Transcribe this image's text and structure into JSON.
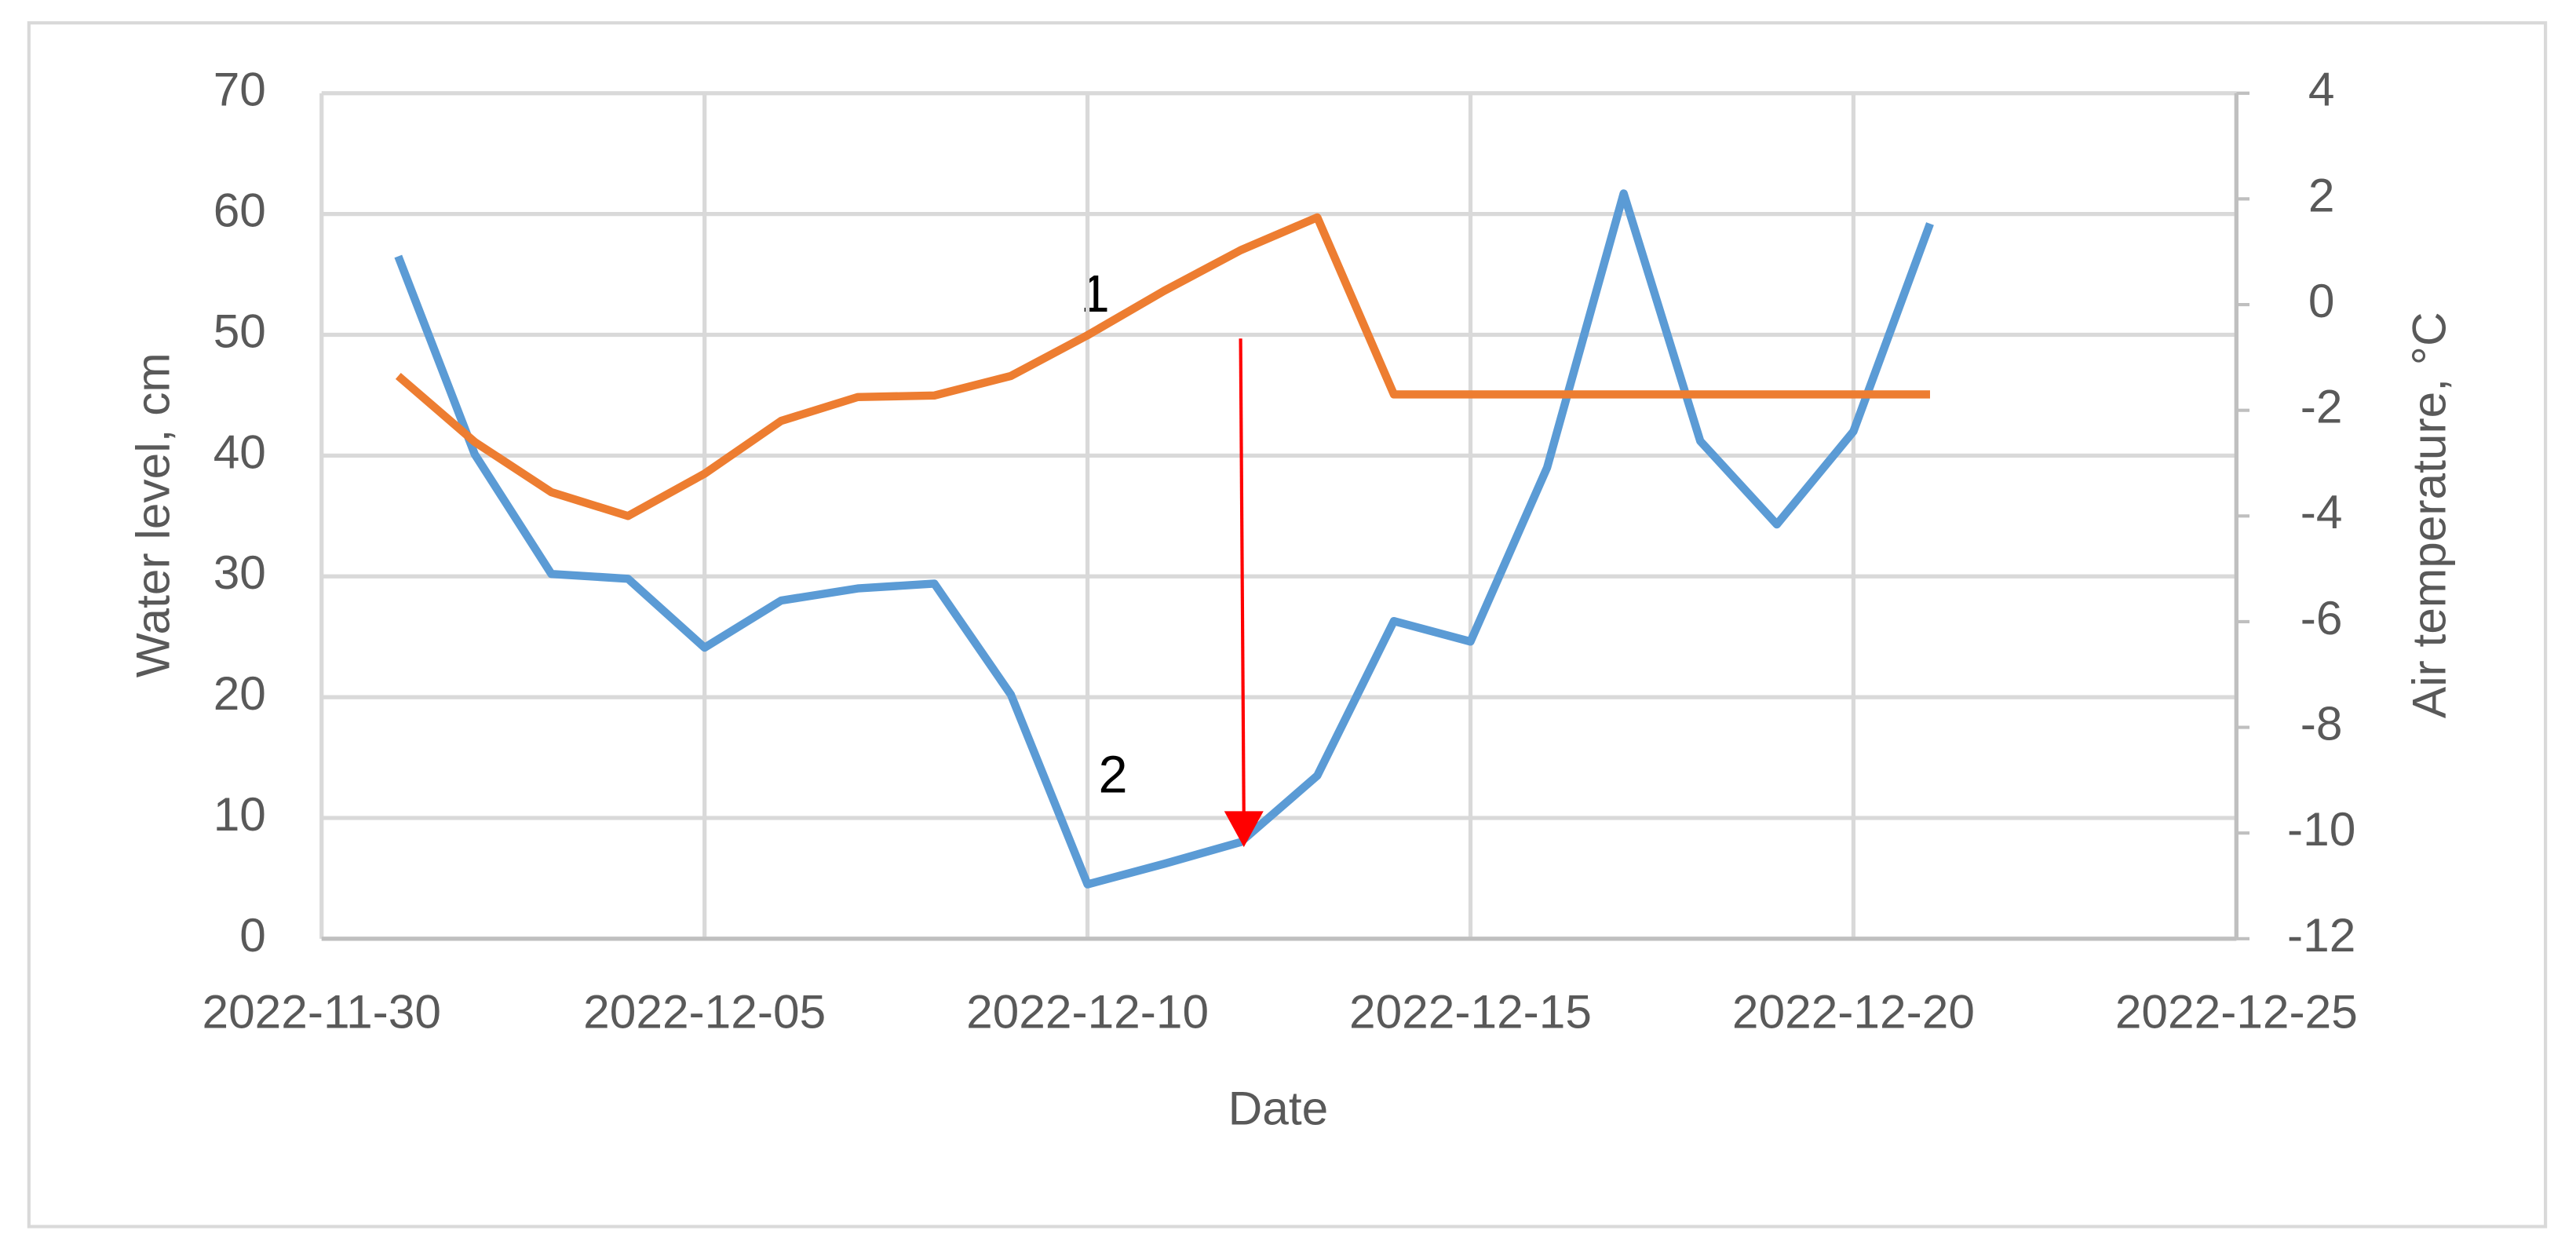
{
  "chart_data": {
    "type": "line",
    "x_label": "Date",
    "y_label": "Water level, cm",
    "y2_label": "Air temperature, °C",
    "x": [
      "2022-12-01",
      "2022-12-02",
      "2022-12-03",
      "2022-12-04",
      "2022-12-05",
      "2022-12-06",
      "2022-12-07",
      "2022-12-08",
      "2022-12-09",
      "2022-12-10",
      "2022-12-11",
      "2022-12-12",
      "2022-12-13",
      "2022-12-14",
      "2022-12-15",
      "2022-12-16",
      "2022-12-17",
      "2022-12-18",
      "2022-12-19",
      "2022-12-20",
      "2022-12-21"
    ],
    "series": [
      {
        "color": "#5b9bd5",
        "values": [
          56.5,
          40.1,
          30.2,
          29.8,
          24.1,
          28.0,
          29.0,
          29.4,
          20.2,
          4.5,
          6.2,
          8.0,
          13.5,
          26.3,
          24.6,
          39.0,
          61.7,
          41.2,
          34.3,
          42.0,
          59.2
        ]
      },
      {
        "color": "#ed7d31",
        "axis": "y2",
        "values": [
          -1.35,
          -2.6,
          -3.55,
          -4.0,
          -3.2,
          -2.2,
          -1.75,
          -1.72,
          -1.35,
          -0.58,
          0.26,
          1.03,
          1.65,
          -1.7,
          -1.7,
          -1.7,
          -1.7,
          -1.7,
          -1.7,
          -1.7,
          -1.7
        ]
      }
    ],
    "xlim": [
      "2022-11-30",
      "2022-12-25"
    ],
    "xticks": [
      "2022-11-30",
      "2022-12-05",
      "2022-12-10",
      "2022-12-15",
      "2022-12-20",
      "2022-12-25"
    ],
    "ylim": [
      0,
      70
    ],
    "yticks": [
      0,
      10,
      20,
      30,
      40,
      50,
      60,
      70
    ],
    "y2lim": [
      -12,
      4
    ],
    "y2ticks": [
      -12,
      -10,
      -8,
      -6,
      -4,
      -2,
      0,
      2,
      4
    ],
    "grid": true,
    "annotations": [
      "1",
      "2"
    ]
  }
}
